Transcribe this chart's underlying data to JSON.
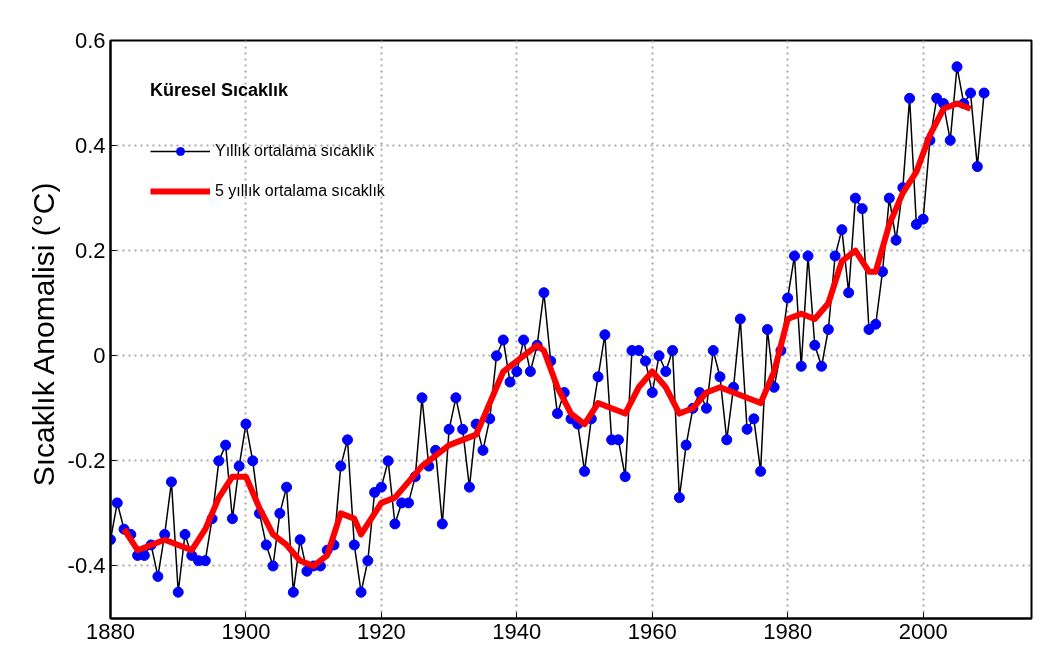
{
  "chart_data": {
    "type": "line",
    "ylabel": "Sıcaklık Anomalisi  (°C)",
    "legend_title": "Küresel Sıcaklık",
    "xlim": [
      1880,
      2016
    ],
    "xticks": [
      1880,
      1900,
      1920,
      1940,
      1960,
      1980,
      2000
    ],
    "ylim": [
      -0.5,
      0.6
    ],
    "yticks": [
      {
        "value": -0.4,
        "label": "-0.4"
      },
      {
        "value": -0.2,
        "label": "-0.2"
      },
      0,
      0.2,
      0.4,
      0.6
    ],
    "grid": true,
    "legend": "top left",
    "series": [
      {
        "name": "Yıllık ortalama sıcaklık",
        "color": "#0000ff",
        "marker": "circle",
        "x": [
          1880,
          1881,
          1882,
          1883,
          1884,
          1885,
          1886,
          1887,
          1888,
          1889,
          1890,
          1891,
          1892,
          1893,
          1894,
          1895,
          1896,
          1897,
          1898,
          1899,
          1900,
          1901,
          1902,
          1903,
          1904,
          1905,
          1906,
          1907,
          1908,
          1909,
          1910,
          1911,
          1912,
          1913,
          1914,
          1915,
          1916,
          1917,
          1918,
          1919,
          1920,
          1921,
          1922,
          1923,
          1924,
          1925,
          1926,
          1927,
          1928,
          1929,
          1930,
          1931,
          1932,
          1933,
          1934,
          1935,
          1936,
          1937,
          1938,
          1939,
          1940,
          1941,
          1942,
          1943,
          1944,
          1945,
          1946,
          1947,
          1948,
          1949,
          1950,
          1951,
          1952,
          1953,
          1954,
          1955,
          1956,
          1957,
          1958,
          1959,
          1960,
          1961,
          1962,
          1963,
          1964,
          1965,
          1966,
          1967,
          1968,
          1969,
          1970,
          1971,
          1972,
          1973,
          1974,
          1975,
          1976,
          1977,
          1978,
          1979,
          1980,
          1981,
          1982,
          1983,
          1984,
          1985,
          1986,
          1987,
          1988,
          1989,
          1990,
          1991,
          1992,
          1993,
          1994,
          1995,
          1996,
          1997,
          1998,
          1999,
          2000,
          2001,
          2002,
          2003,
          2004,
          2005,
          2006,
          2007,
          2008,
          2009
        ],
        "values": [
          -0.35,
          -0.28,
          -0.33,
          -0.34,
          -0.38,
          -0.38,
          -0.36,
          -0.42,
          -0.34,
          -0.24,
          -0.45,
          -0.34,
          -0.38,
          -0.39,
          -0.39,
          -0.31,
          -0.2,
          -0.17,
          -0.31,
          -0.21,
          -0.13,
          -0.2,
          -0.3,
          -0.36,
          -0.4,
          -0.3,
          -0.25,
          -0.45,
          -0.35,
          -0.41,
          -0.4,
          -0.4,
          -0.37,
          -0.36,
          -0.21,
          -0.16,
          -0.36,
          -0.45,
          -0.39,
          -0.26,
          -0.25,
          -0.2,
          -0.32,
          -0.28,
          -0.28,
          -0.23,
          -0.08,
          -0.21,
          -0.18,
          -0.32,
          -0.14,
          -0.08,
          -0.14,
          -0.25,
          -0.13,
          -0.18,
          -0.12,
          0.0,
          0.03,
          -0.05,
          -0.03,
          0.03,
          -0.03,
          0.02,
          0.12,
          -0.01,
          -0.11,
          -0.07,
          -0.12,
          -0.13,
          -0.22,
          -0.12,
          -0.04,
          0.04,
          -0.16,
          -0.16,
          -0.23,
          0.01,
          0.01,
          -0.01,
          -0.07,
          0.0,
          -0.03,
          0.01,
          -0.27,
          -0.17,
          -0.1,
          -0.07,
          -0.1,
          0.01,
          -0.04,
          -0.16,
          -0.06,
          0.07,
          -0.14,
          -0.12,
          -0.22,
          0.05,
          -0.06,
          0.01,
          0.11,
          0.19,
          -0.02,
          0.19,
          0.02,
          -0.02,
          0.05,
          0.19,
          0.24,
          0.12,
          0.3,
          0.28,
          0.05,
          0.06,
          0.16,
          0.3,
          0.22,
          0.32,
          0.49,
          0.25,
          0.26,
          0.41,
          0.49,
          0.48,
          0.41,
          0.55,
          0.48,
          0.5,
          0.36,
          0.5
        ]
      },
      {
        "name": "5 yıllık ortalama sıcaklık",
        "color": "#ff0000",
        "marker": "none",
        "x": [
          1882,
          1884,
          1886,
          1888,
          1890,
          1892,
          1894,
          1896,
          1898,
          1900,
          1902,
          1904,
          1906,
          1908,
          1910,
          1912,
          1914,
          1916,
          1917,
          1918,
          1920,
          1922,
          1924,
          1926,
          1928,
          1930,
          1932,
          1934,
          1936,
          1938,
          1940,
          1942,
          1943,
          1944,
          1946,
          1948,
          1950,
          1952,
          1954,
          1956,
          1958,
          1960,
          1962,
          1964,
          1966,
          1968,
          1970,
          1972,
          1974,
          1976,
          1978,
          1980,
          1982,
          1984,
          1986,
          1988,
          1990,
          1992,
          1993,
          1995,
          1997,
          1999,
          2001,
          2003,
          2005,
          2007
        ],
        "values": [
          -0.33,
          -0.37,
          -0.36,
          -0.35,
          -0.36,
          -0.37,
          -0.33,
          -0.27,
          -0.23,
          -0.23,
          -0.29,
          -0.34,
          -0.36,
          -0.39,
          -0.4,
          -0.38,
          -0.3,
          -0.31,
          -0.34,
          -0.32,
          -0.28,
          -0.27,
          -0.24,
          -0.21,
          -0.19,
          -0.17,
          -0.16,
          -0.15,
          -0.09,
          -0.03,
          -0.01,
          0.01,
          0.02,
          0.01,
          -0.06,
          -0.11,
          -0.13,
          -0.09,
          -0.1,
          -0.11,
          -0.06,
          -0.03,
          -0.06,
          -0.11,
          -0.1,
          -0.07,
          -0.06,
          -0.07,
          -0.08,
          -0.09,
          -0.03,
          0.07,
          0.08,
          0.07,
          0.1,
          0.18,
          0.2,
          0.16,
          0.16,
          0.25,
          0.31,
          0.35,
          0.42,
          0.47,
          0.48,
          0.47
        ]
      }
    ]
  }
}
